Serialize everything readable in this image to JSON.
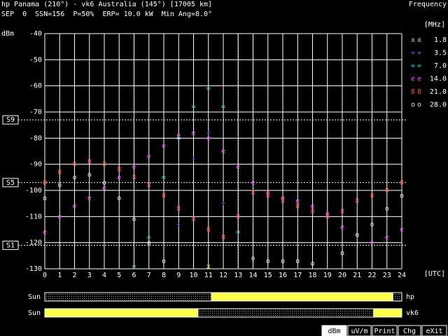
{
  "header": {
    "line1": "hp Panama (210°) - vk6 Australia (145°) [17005 km]",
    "line2": "SEP  0  SSN=156  P=50%  ERP= 10.0 kW  Min Ang=8.0°",
    "right": "Frequency"
  },
  "chart_data": {
    "type": "scatter",
    "y_label": "dBm",
    "x_label": "[UTC]",
    "legend_title": "[MHz]",
    "x": [
      0,
      1,
      2,
      3,
      4,
      5,
      6,
      7,
      8,
      9,
      10,
      11,
      12,
      13,
      14,
      15,
      16,
      17,
      18,
      19,
      20,
      21,
      22,
      23,
      24
    ],
    "xlim": [
      0,
      24
    ],
    "ylim": [
      -130,
      -40
    ],
    "xticks": [
      0,
      1,
      2,
      3,
      4,
      5,
      6,
      7,
      8,
      9,
      10,
      11,
      12,
      13,
      14,
      15,
      16,
      17,
      18,
      19,
      20,
      21,
      22,
      23,
      24
    ],
    "yticks": [
      -40,
      -50,
      -60,
      -70,
      -80,
      -90,
      -100,
      -110,
      -120,
      -130
    ],
    "grid": true,
    "cursor_x": 13,
    "s_markers": [
      {
        "label": "S9",
        "value": -73
      },
      {
        "label": "S5",
        "value": -97
      },
      {
        "label": "S1",
        "value": -121
      }
    ],
    "series": [
      {
        "name": "1.8",
        "marker": "x",
        "color": "#e8e84a",
        "values": [
          null,
          null,
          null,
          null,
          null,
          null,
          null,
          null,
          null,
          null,
          null,
          -129,
          null,
          null,
          null,
          null,
          null,
          null,
          null,
          null,
          null,
          null,
          null,
          null,
          null
        ]
      },
      {
        "name": "3.5",
        "marker": "+",
        "color": "#4a6cff",
        "values": [
          null,
          null,
          null,
          null,
          null,
          null,
          null,
          null,
          null,
          -113,
          -88,
          -78,
          -105,
          null,
          null,
          null,
          null,
          null,
          null,
          null,
          null,
          null,
          null,
          null,
          null
        ]
      },
      {
        "name": "7.0",
        "marker": "=",
        "color": "#40e0e0",
        "values": [
          null,
          null,
          null,
          null,
          null,
          null,
          -129,
          -118,
          -95,
          -80,
          -68,
          -61,
          -68,
          -116,
          null,
          null,
          null,
          null,
          null,
          null,
          null,
          null,
          null,
          null,
          null
        ]
      },
      {
        "name": "14.0",
        "marker": "e",
        "color": "#ff50ff",
        "values": [
          -116,
          -110,
          -106,
          -103,
          -99,
          -95,
          -91,
          -87,
          -83,
          -79,
          -78,
          -80,
          -85,
          -91,
          -97,
          -101,
          -103,
          -104,
          -106,
          -109,
          -114,
          -117,
          -120,
          -118,
          -115
        ]
      },
      {
        "name": "21.0",
        "marker": "8",
        "color": "#ff5050",
        "values": [
          -97,
          -93,
          -90,
          -89,
          -90,
          -92,
          -95,
          -98,
          -102,
          -107,
          -111,
          -115,
          -118,
          -110,
          -101,
          -102,
          -104,
          -106,
          -108,
          -110,
          -108,
          -104,
          -102,
          -100,
          -97
        ]
      },
      {
        "name": "28.0",
        "marker": "o",
        "color": "#e0e0e0",
        "values": [
          -103,
          -98,
          -95,
          -94,
          -97,
          -103,
          -111,
          -120,
          -127,
          null,
          null,
          null,
          null,
          null,
          -126,
          -127,
          -127,
          -127,
          -128,
          null,
          -124,
          -117,
          -113,
          -107,
          -102
        ]
      }
    ],
    "sun": [
      {
        "left": "Sun",
        "right": "hp",
        "day": [
          [
            11.2,
            23.4
          ]
        ]
      },
      {
        "left": "Sun",
        "right": "vk6",
        "day": [
          [
            0,
            10.3
          ],
          [
            22.1,
            24
          ]
        ]
      }
    ]
  },
  "buttons": [
    "dBm",
    "uV/m",
    "Print",
    "Chg",
    "eXit"
  ]
}
